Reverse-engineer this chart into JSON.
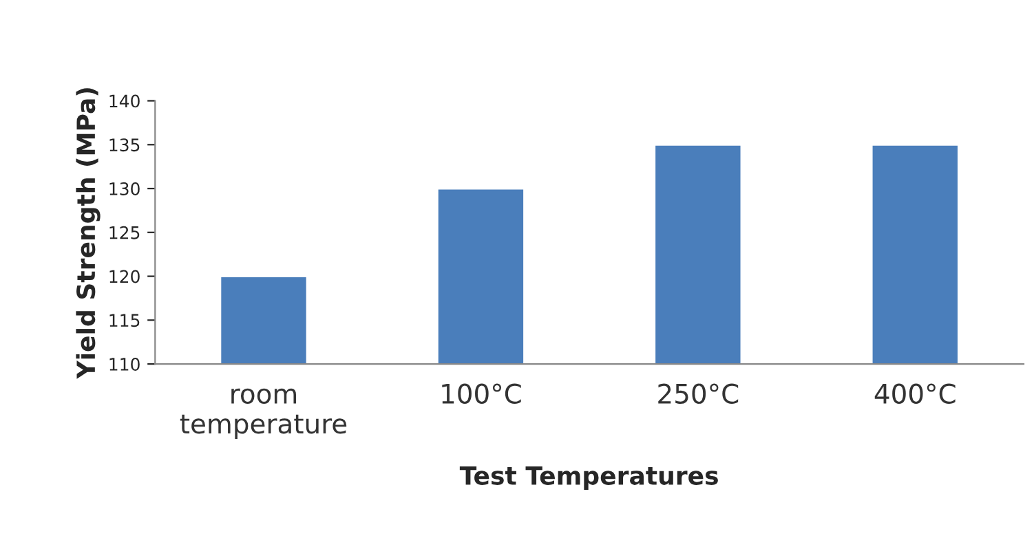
{
  "chart_data": {
    "type": "bar",
    "xlabel": "Test Temperatures",
    "ylabel": "Yield Strength (MPa)",
    "categories": [
      "room\ntemperature",
      "100°C",
      "250°C",
      "400°C"
    ],
    "values": [
      120,
      130,
      135,
      135
    ],
    "color": "#4a7ebb",
    "ylim": [
      110,
      140
    ],
    "yticks": [
      110,
      115,
      120,
      125,
      130,
      135,
      140
    ],
    "grid": false,
    "legend": false
  }
}
